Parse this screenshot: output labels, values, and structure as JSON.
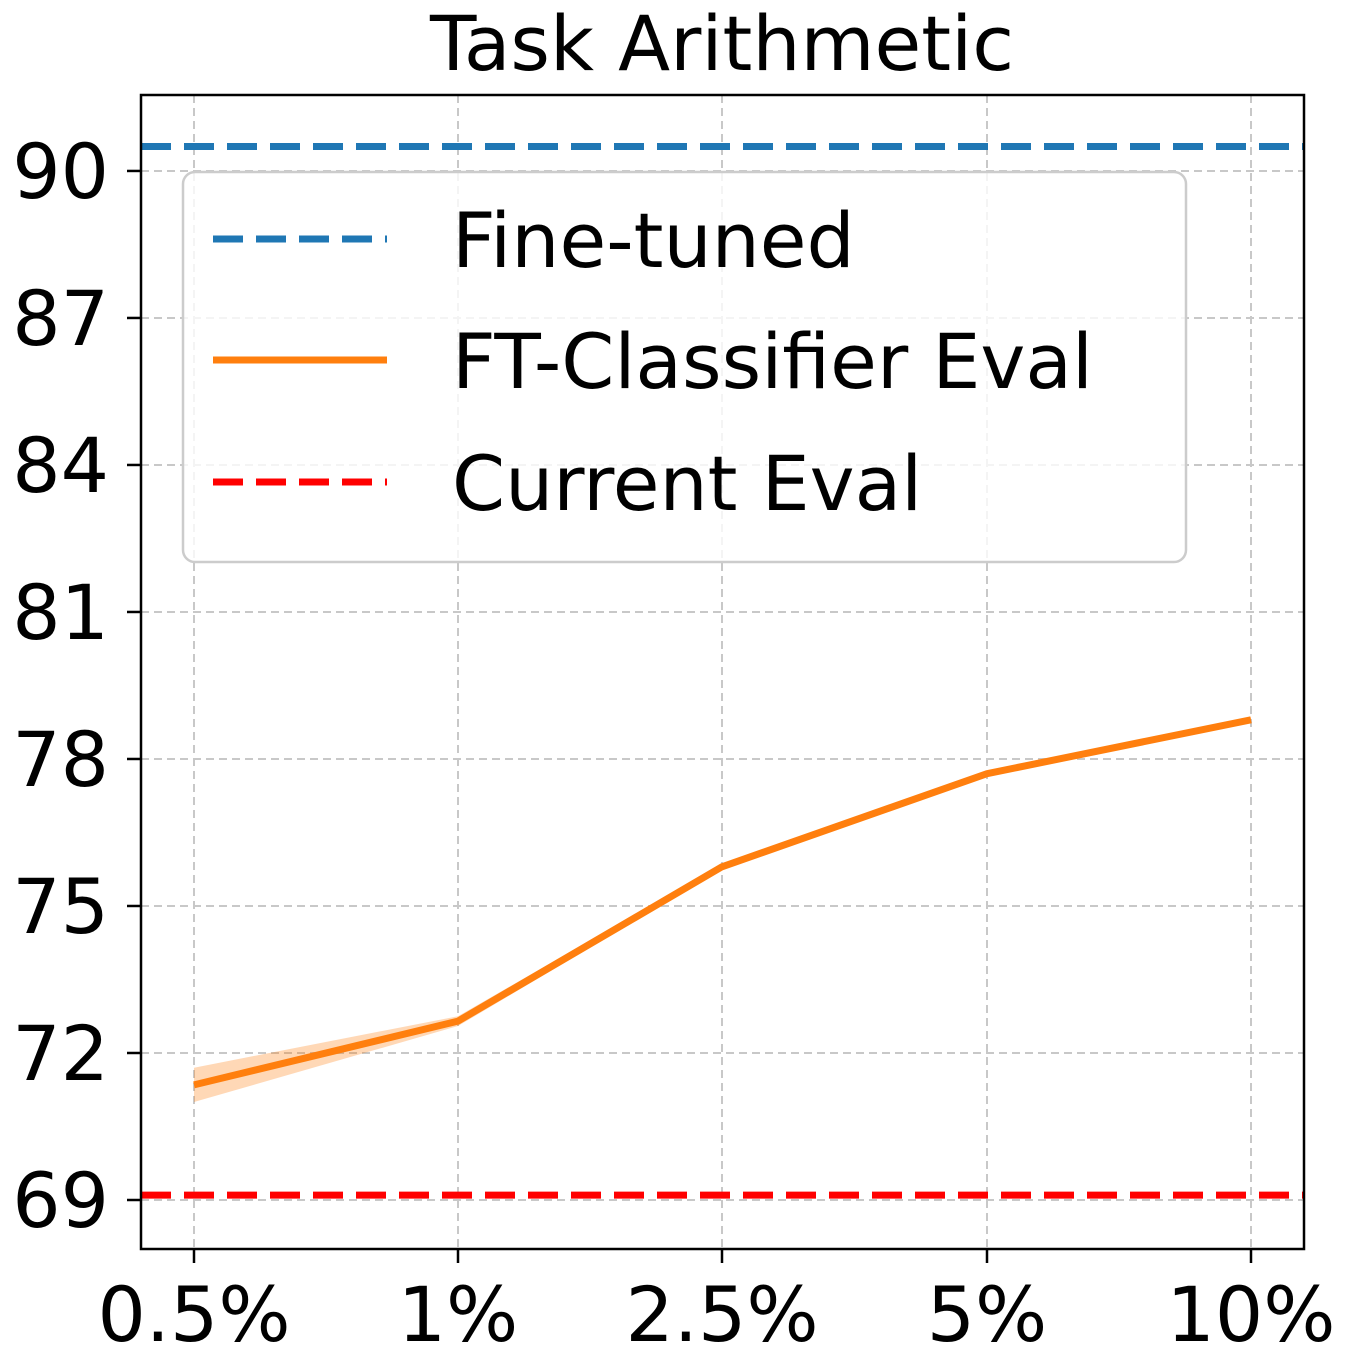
{
  "chart_data": {
    "type": "line",
    "title": "Task Arithmetic",
    "xlabel": "",
    "ylabel": "",
    "categories": [
      "0.5%",
      "1%",
      "2.5%",
      "5%",
      "10%"
    ],
    "yticks": [
      69,
      72,
      75,
      78,
      81,
      84,
      87,
      90
    ],
    "ylim": [
      68.0,
      91.55
    ],
    "grid": true,
    "legend_position": "top",
    "series": [
      {
        "name": "Fine-tuned",
        "kind": "hline",
        "value": 90.5,
        "color": "#1f77b4",
        "style": "dashed"
      },
      {
        "name": "FT-Classifier Eval",
        "kind": "line",
        "values": [
          71.35,
          72.65,
          75.8,
          77.7,
          78.8
        ],
        "band_lower": [
          71.0,
          72.55,
          75.75,
          77.65,
          78.75
        ],
        "band_upper": [
          71.7,
          72.75,
          75.85,
          77.75,
          78.85
        ],
        "color": "#ff7f0e",
        "style": "solid"
      },
      {
        "name": "Current Eval",
        "kind": "hline",
        "value": 69.1,
        "color": "#ff0000",
        "style": "dashed"
      }
    ]
  }
}
